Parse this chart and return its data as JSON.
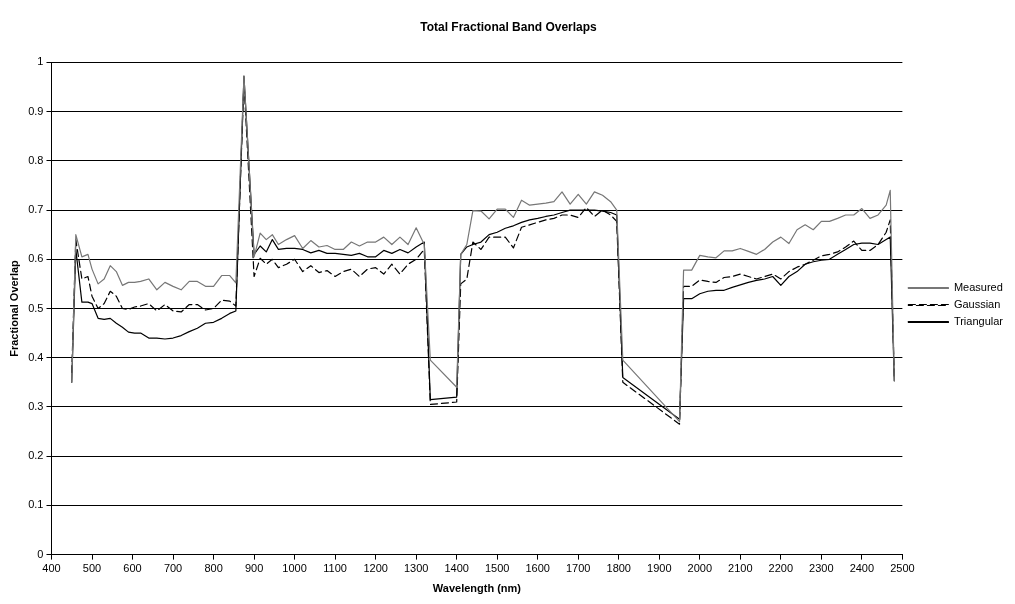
{
  "chart_data": {
    "type": "line",
    "title": "Total Fractional Band Overlaps",
    "xlabel": "Wavelength (nm)",
    "ylabel": "Fractional Overlap",
    "x": [
      450,
      460,
      475,
      490,
      500,
      515,
      530,
      545,
      560,
      575,
      590,
      605,
      620,
      640,
      660,
      680,
      700,
      720,
      740,
      760,
      780,
      800,
      820,
      840,
      855,
      875,
      900,
      915,
      930,
      945,
      960,
      980,
      1000,
      1020,
      1040,
      1060,
      1080,
      1100,
      1120,
      1140,
      1160,
      1180,
      1200,
      1220,
      1240,
      1260,
      1280,
      1300,
      1320,
      1335,
      1400,
      1410,
      1425,
      1440,
      1460,
      1480,
      1500,
      1520,
      1540,
      1560,
      1580,
      1600,
      1620,
      1640,
      1660,
      1680,
      1700,
      1720,
      1740,
      1760,
      1780,
      1795,
      1810,
      1950,
      1960,
      1980,
      2000,
      2020,
      2040,
      2060,
      2080,
      2100,
      2120,
      2140,
      2160,
      2180,
      2200,
      2220,
      2240,
      2260,
      2280,
      2300,
      2320,
      2340,
      2360,
      2380,
      2400,
      2420,
      2440,
      2460,
      2470,
      2480
    ],
    "series": [
      {
        "name": "Measured",
        "color": "#777777",
        "values": [
          0.35,
          0.65,
          0.605,
          0.61,
          0.58,
          0.55,
          0.56,
          0.587,
          0.575,
          0.547,
          0.553,
          0.553,
          0.555,
          0.56,
          0.538,
          0.553,
          0.545,
          0.538,
          0.555,
          0.555,
          0.545,
          0.545,
          0.567,
          0.567,
          0.552,
          0.972,
          0.605,
          0.653,
          0.64,
          0.65,
          0.63,
          0.64,
          0.648,
          0.622,
          0.638,
          0.625,
          0.628,
          0.62,
          0.62,
          0.635,
          0.627,
          0.635,
          0.635,
          0.645,
          0.63,
          0.645,
          0.63,
          0.664,
          0.63,
          0.395,
          0.34,
          0.61,
          0.63,
          0.699,
          0.698,
          0.682,
          0.702,
          0.702,
          0.685,
          0.72,
          0.71,
          0.712,
          0.714,
          0.717,
          0.737,
          0.712,
          0.732,
          0.712,
          0.737,
          0.73,
          0.717,
          0.7,
          0.395,
          0.27,
          0.578,
          0.578,
          0.608,
          0.605,
          0.603,
          0.617,
          0.617,
          0.622,
          0.616,
          0.61,
          0.62,
          0.635,
          0.645,
          0.632,
          0.66,
          0.67,
          0.66,
          0.677,
          0.677,
          0.683,
          0.69,
          0.69,
          0.703,
          0.683,
          0.69,
          0.71,
          0.74,
          0.353
        ]
      },
      {
        "name": "Gaussian",
        "color": "#000000",
        "line_style": "dashed",
        "values": [
          0.37,
          0.64,
          0.56,
          0.565,
          0.525,
          0.5,
          0.51,
          0.535,
          0.525,
          0.5,
          0.498,
          0.503,
          0.505,
          0.51,
          0.495,
          0.508,
          0.495,
          0.493,
          0.508,
          0.508,
          0.497,
          0.5,
          0.517,
          0.515,
          0.505,
          0.96,
          0.565,
          0.602,
          0.59,
          0.6,
          0.583,
          0.59,
          0.6,
          0.575,
          0.587,
          0.573,
          0.577,
          0.565,
          0.575,
          0.58,
          0.565,
          0.58,
          0.583,
          0.57,
          0.59,
          0.57,
          0.59,
          0.6,
          0.62,
          0.305,
          0.31,
          0.55,
          0.56,
          0.635,
          0.62,
          0.645,
          0.645,
          0.645,
          0.623,
          0.665,
          0.67,
          0.675,
          0.68,
          0.683,
          0.69,
          0.69,
          0.685,
          0.705,
          0.687,
          0.7,
          0.69,
          0.677,
          0.35,
          0.265,
          0.545,
          0.545,
          0.558,
          0.555,
          0.553,
          0.563,
          0.565,
          0.57,
          0.565,
          0.56,
          0.565,
          0.57,
          0.56,
          0.575,
          0.584,
          0.59,
          0.598,
          0.607,
          0.61,
          0.615,
          0.625,
          0.637,
          0.618,
          0.618,
          0.63,
          0.655,
          0.68,
          0.36
        ]
      },
      {
        "name": "Triangular",
        "color": "#000000",
        "values": [
          0.35,
          0.62,
          0.513,
          0.513,
          0.51,
          0.48,
          0.478,
          0.48,
          0.47,
          0.462,
          0.452,
          0.45,
          0.45,
          0.44,
          0.44,
          0.438,
          0.44,
          0.445,
          0.453,
          0.46,
          0.47,
          0.472,
          0.48,
          0.49,
          0.495,
          0.972,
          0.61,
          0.627,
          0.615,
          0.64,
          0.62,
          0.622,
          0.622,
          0.62,
          0.613,
          0.618,
          0.612,
          0.612,
          0.61,
          0.608,
          0.612,
          0.605,
          0.605,
          0.618,
          0.612,
          0.62,
          0.613,
          0.625,
          0.635,
          0.315,
          0.32,
          0.61,
          0.625,
          0.63,
          0.635,
          0.65,
          0.655,
          0.663,
          0.668,
          0.675,
          0.68,
          0.683,
          0.687,
          0.69,
          0.695,
          0.7,
          0.7,
          0.7,
          0.7,
          0.698,
          0.695,
          0.69,
          0.36,
          0.275,
          0.52,
          0.52,
          0.53,
          0.535,
          0.537,
          0.537,
          0.543,
          0.548,
          0.553,
          0.557,
          0.56,
          0.565,
          0.547,
          0.565,
          0.575,
          0.59,
          0.595,
          0.598,
          0.6,
          0.61,
          0.62,
          0.63,
          0.633,
          0.633,
          0.63,
          0.64,
          0.645,
          0.353
        ]
      }
    ],
    "xlim": [
      400,
      2500
    ],
    "xticks": [
      400,
      500,
      600,
      700,
      800,
      900,
      1000,
      1100,
      1200,
      1300,
      1400,
      1500,
      1600,
      1700,
      1800,
      1900,
      2000,
      2100,
      2200,
      2300,
      2400,
      2500
    ],
    "ylim": [
      0,
      1
    ],
    "yticks": [
      0,
      0.1,
      0.2,
      0.3,
      0.4,
      0.5,
      0.6,
      0.7,
      0.8,
      0.9,
      1
    ],
    "grid": "y",
    "legend": "right",
    "marker": "none",
    "line_style": "solid"
  }
}
